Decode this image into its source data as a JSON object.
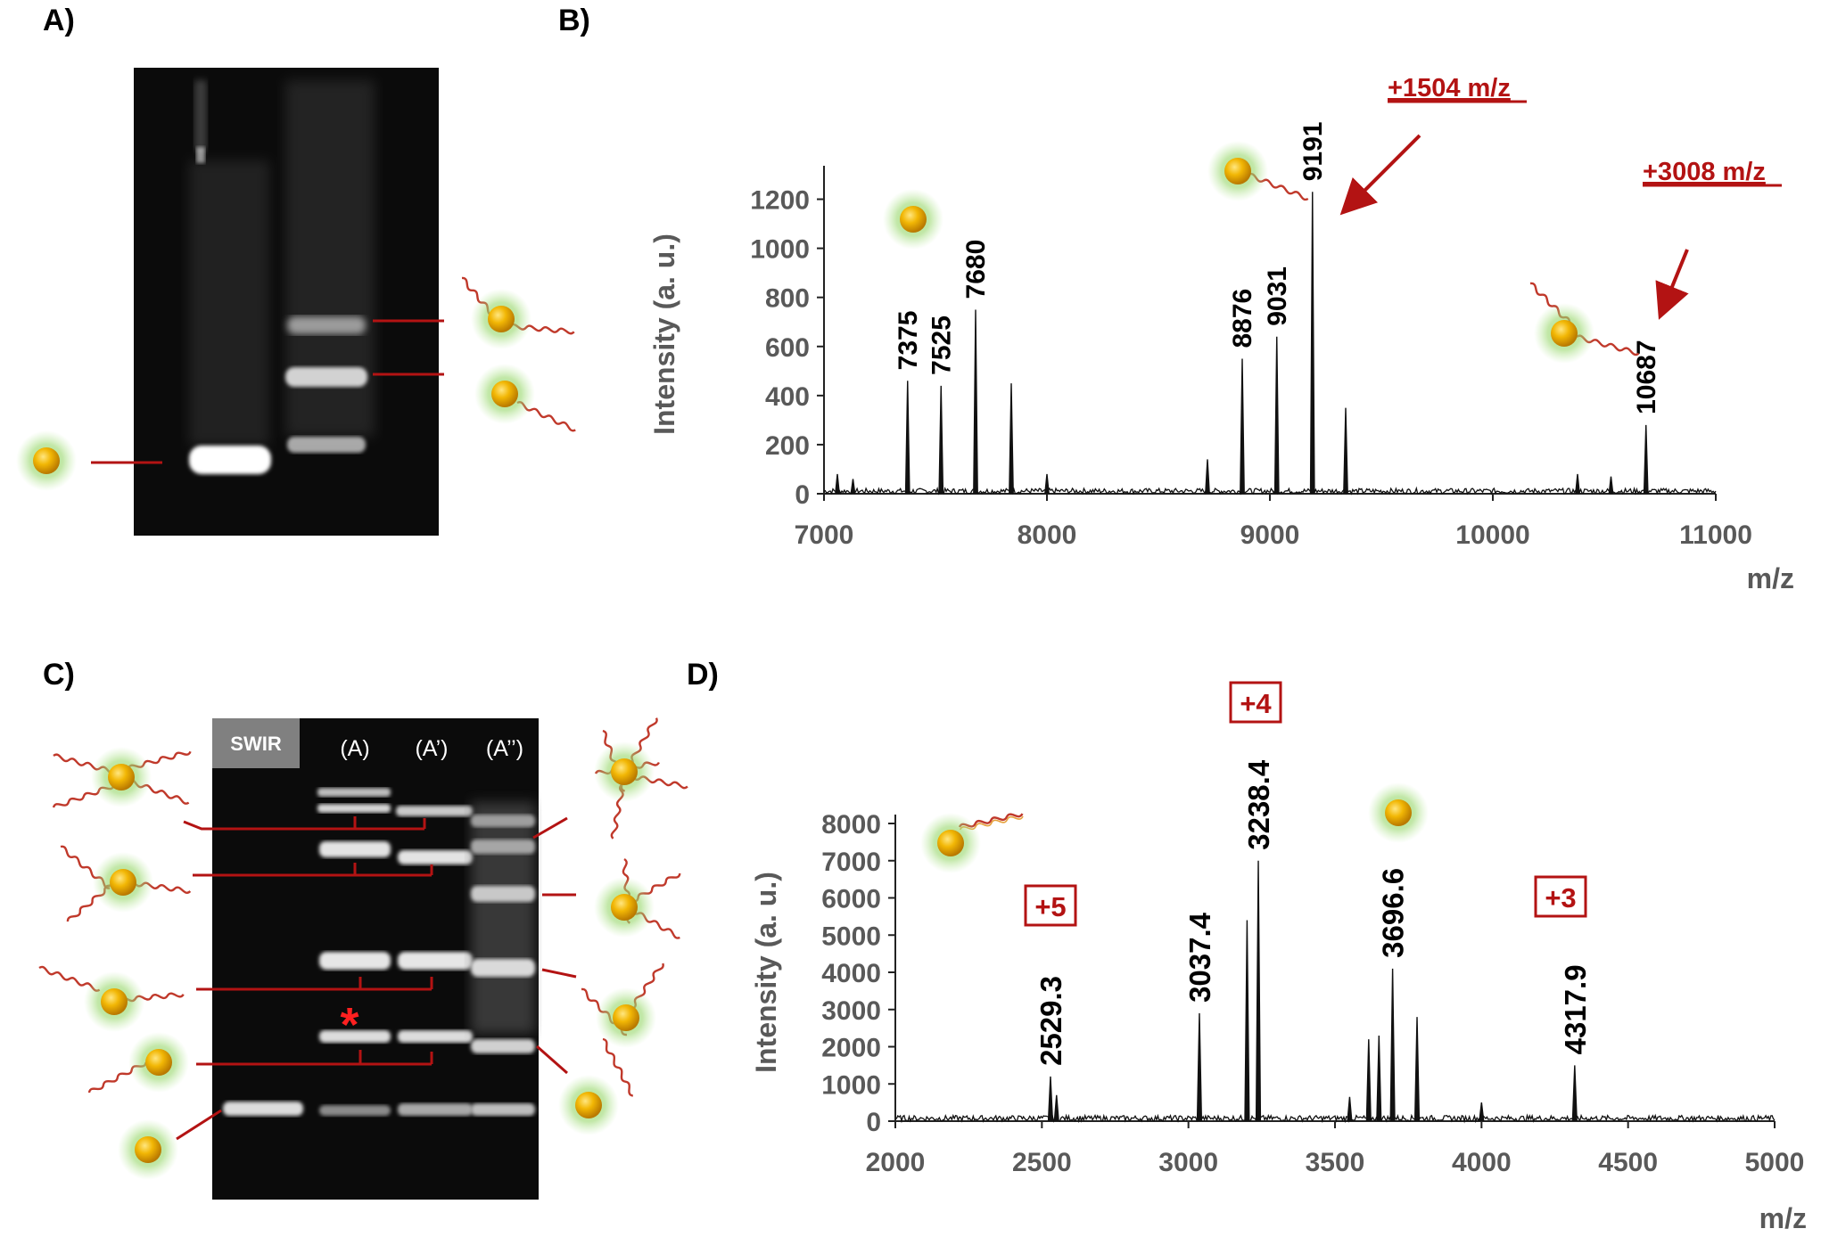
{
  "panels": {
    "A": {
      "label": "A)"
    },
    "B": {
      "label": "B)"
    },
    "C": {
      "label": "C)",
      "badge": "SWIR",
      "lanes": [
        "(A)",
        "(A’)",
        "(A’’)"
      ],
      "marker": "*"
    },
    "D": {
      "label": "D)"
    }
  },
  "colors": {
    "annotation": "#b31313",
    "axis_text": "#595959",
    "trace": "#000000",
    "gel_bg": "#0b0b0b",
    "nanoparticle": "#f0b400",
    "halo": "#8fdc6a"
  },
  "chart_data": [
    {
      "panel": "B",
      "type": "line",
      "xlabel": "m/z",
      "ylabel": "Intensity (a. u.)",
      "xlim": [
        7000,
        11000
      ],
      "ylim": [
        0,
        1300
      ],
      "xticks": [
        7000,
        8000,
        9000,
        10000,
        11000
      ],
      "yticks": [
        0,
        200,
        400,
        600,
        800,
        1000,
        1200
      ],
      "peaks": [
        {
          "x": 7060,
          "y": 80
        },
        {
          "x": 7130,
          "y": 60
        },
        {
          "x": 7375,
          "y": 460,
          "label": "7375"
        },
        {
          "x": 7525,
          "y": 440,
          "label": "7525"
        },
        {
          "x": 7680,
          "y": 750,
          "label": "7680"
        },
        {
          "x": 7840,
          "y": 450
        },
        {
          "x": 8000,
          "y": 80
        },
        {
          "x": 8720,
          "y": 140
        },
        {
          "x": 8876,
          "y": 550,
          "label": "8876"
        },
        {
          "x": 9031,
          "y": 640,
          "label": "9031"
        },
        {
          "x": 9191,
          "y": 1230,
          "label": "9191"
        },
        {
          "x": 9340,
          "y": 350
        },
        {
          "x": 10380,
          "y": 80
        },
        {
          "x": 10530,
          "y": 70
        },
        {
          "x": 10687,
          "y": 280,
          "label": "10687"
        }
      ],
      "annotations": [
        "+1504 m/z",
        "+3008 m/z"
      ]
    },
    {
      "panel": "D",
      "type": "line",
      "xlabel": "m/z",
      "ylabel": "Intensity (a. u.)",
      "xlim": [
        2000,
        5000
      ],
      "ylim": [
        0,
        8000
      ],
      "xticks": [
        2000,
        2500,
        3000,
        3500,
        4000,
        4500,
        5000
      ],
      "yticks": [
        0,
        1000,
        2000,
        3000,
        4000,
        5000,
        6000,
        7000,
        8000
      ],
      "peaks": [
        {
          "x": 2529.3,
          "y": 1200,
          "label": "2529.3"
        },
        {
          "x": 2550,
          "y": 700
        },
        {
          "x": 3037.4,
          "y": 2900,
          "label": "3037.4"
        },
        {
          "x": 3200,
          "y": 5400
        },
        {
          "x": 3238.4,
          "y": 7000,
          "label": "3238.4"
        },
        {
          "x": 3550,
          "y": 650
        },
        {
          "x": 3615,
          "y": 2200
        },
        {
          "x": 3650,
          "y": 2300
        },
        {
          "x": 3696.6,
          "y": 4100,
          "label": "3696.6"
        },
        {
          "x": 3780,
          "y": 2800
        },
        {
          "x": 4000,
          "y": 500
        },
        {
          "x": 4317.9,
          "y": 1500,
          "label": "4317.9"
        }
      ],
      "charge_states": [
        "+5",
        "+4",
        "+3"
      ]
    }
  ]
}
